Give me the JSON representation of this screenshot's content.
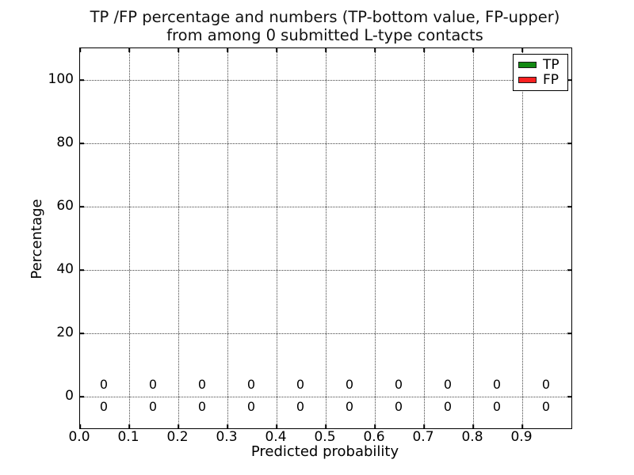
{
  "chart_data": {
    "type": "bar",
    "title": "TP /FP percentage and numbers (TP-bottom value, FP-upper) from among 0 submitted L-type contacts",
    "title_line1": "TP /FP percentage and numbers (TP-bottom value, FP-upper)",
    "title_line2": "from among 0 submitted L-type contacts",
    "xlabel": "Predicted probability",
    "ylabel": "Percentage",
    "xlim": [
      0.0,
      1.0
    ],
    "ylim": [
      -10,
      110
    ],
    "x_tick_values": [
      0.0,
      0.1,
      0.2,
      0.3,
      0.4,
      0.5,
      0.6,
      0.7,
      0.8,
      0.9
    ],
    "x_tick_labels": [
      "0.0",
      "0.1",
      "0.2",
      "0.3",
      "0.4",
      "0.5",
      "0.6",
      "0.7",
      "0.8",
      "0.9"
    ],
    "y_tick_values": [
      0,
      20,
      40,
      60,
      80,
      100
    ],
    "y_tick_labels": [
      "0",
      "20",
      "40",
      "60",
      "80",
      "100"
    ],
    "categories": [
      0.05,
      0.15,
      0.25,
      0.35,
      0.45,
      0.55,
      0.65,
      0.75,
      0.85,
      0.95
    ],
    "series": [
      {
        "name": "TP",
        "color": "#128912",
        "values": [
          0,
          0,
          0,
          0,
          0,
          0,
          0,
          0,
          0,
          0
        ],
        "label_row": "bottom"
      },
      {
        "name": "FP",
        "color": "#fb2121",
        "values": [
          0,
          0,
          0,
          0,
          0,
          0,
          0,
          0,
          0,
          0
        ],
        "label_row": "top"
      }
    ],
    "annotation_rows_y": {
      "top": 3.4,
      "bottom": -3.4
    },
    "grid": {
      "linestyle": "dotted",
      "color": "#444444"
    },
    "legend": {
      "position": "upper-right",
      "entries": [
        {
          "label": "TP",
          "color": "#128912"
        },
        {
          "label": "FP",
          "color": "#fb2121"
        }
      ]
    },
    "axis_color": "#000000",
    "background": "#ffffff"
  }
}
